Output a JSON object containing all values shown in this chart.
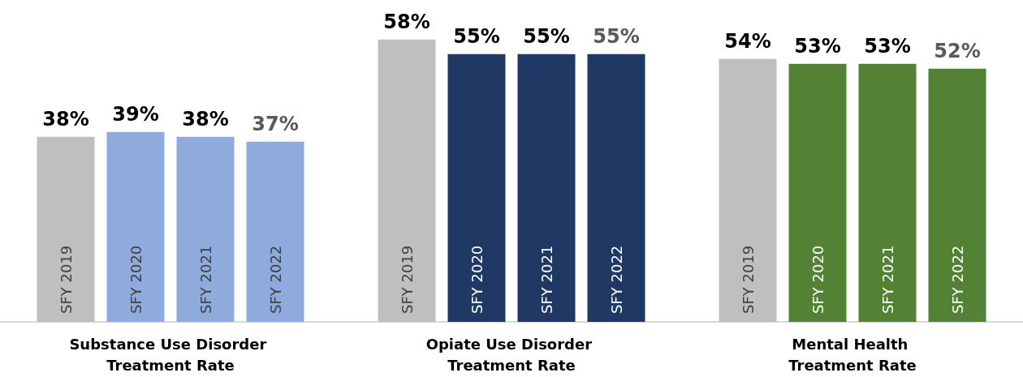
{
  "chart_data": {
    "type": "bar",
    "categories": [
      "Substance Use Disorder Treatment Rate",
      "Opiate Use Disorder Treatment Rate",
      "Mental Health Treatment Rate"
    ],
    "series": [
      {
        "name": "SFY 2019",
        "colors": [
          "#bfbfbf",
          "#bfbfbf",
          "#bfbfbf"
        ],
        "values": [
          38,
          58,
          54
        ],
        "value_labels": [
          "38%",
          "58%",
          "54%"
        ]
      },
      {
        "name": "SFY 2020",
        "colors": [
          "#8faadc",
          "#203864",
          "#548235"
        ],
        "values": [
          39,
          55,
          53
        ],
        "value_labels": [
          "39%",
          "55%",
          "53%"
        ]
      },
      {
        "name": "SFY 2021",
        "colors": [
          "#8faadc",
          "#203864",
          "#548235"
        ],
        "values": [
          38,
          55,
          53
        ],
        "value_labels": [
          "38%",
          "55%",
          "53%"
        ]
      },
      {
        "name": "SFY 2022",
        "colors": [
          "#8faadc",
          "#203864",
          "#548235"
        ],
        "values": [
          37,
          55,
          52
        ],
        "value_labels": [
          "37%",
          "55%",
          "52%"
        ]
      }
    ],
    "tick_labels": "x"
  }
}
